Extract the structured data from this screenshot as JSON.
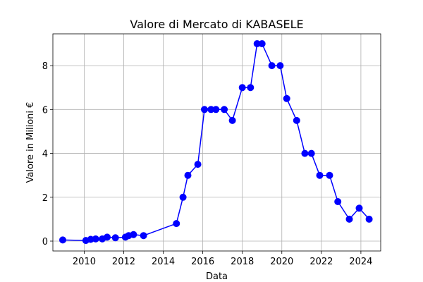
{
  "chart_data": {
    "type": "line",
    "title": "Valore di Mercato di KABASELE",
    "xlabel": "Data",
    "ylabel": "Valore in Milioni €",
    "x_axis_type": "date",
    "xlim": [
      "2008-06-01",
      "2025-01-01"
    ],
    "ylim": [
      -0.45,
      9.45
    ],
    "x_ticks": [
      "2010",
      "2012",
      "2014",
      "2016",
      "2018",
      "2020",
      "2022",
      "2024"
    ],
    "y_ticks": [
      0,
      2,
      4,
      6,
      8
    ],
    "grid": true,
    "legend": "none",
    "series": [
      {
        "color": "#0000ff",
        "marker": "circle",
        "points": [
          {
            "x": "2008-12-01",
            "y": 0.05
          },
          {
            "x": "2010-02-01",
            "y": 0.03
          },
          {
            "x": "2010-05-01",
            "y": 0.08
          },
          {
            "x": "2010-08-01",
            "y": 0.1
          },
          {
            "x": "2010-12-01",
            "y": 0.1
          },
          {
            "x": "2011-03-01",
            "y": 0.18
          },
          {
            "x": "2011-08-01",
            "y": 0.15
          },
          {
            "x": "2012-02-01",
            "y": 0.18
          },
          {
            "x": "2012-04-01",
            "y": 0.25
          },
          {
            "x": "2012-07-01",
            "y": 0.3
          },
          {
            "x": "2013-01-01",
            "y": 0.25
          },
          {
            "x": "2014-09-01",
            "y": 0.8
          },
          {
            "x": "2015-01-01",
            "y": 2.0
          },
          {
            "x": "2015-04-01",
            "y": 3.0
          },
          {
            "x": "2015-10-01",
            "y": 3.5
          },
          {
            "x": "2016-02-01",
            "y": 6.0
          },
          {
            "x": "2016-06-01",
            "y": 6.0
          },
          {
            "x": "2016-09-01",
            "y": 6.0
          },
          {
            "x": "2017-02-01",
            "y": 6.0
          },
          {
            "x": "2017-07-01",
            "y": 5.5
          },
          {
            "x": "2018-01-01",
            "y": 7.0
          },
          {
            "x": "2018-06-01",
            "y": 7.0
          },
          {
            "x": "2018-10-01",
            "y": 9.0
          },
          {
            "x": "2019-01-01",
            "y": 9.0
          },
          {
            "x": "2019-07-01",
            "y": 8.0
          },
          {
            "x": "2019-12-01",
            "y": 8.0
          },
          {
            "x": "2020-04-01",
            "y": 6.5
          },
          {
            "x": "2020-10-01",
            "y": 5.5
          },
          {
            "x": "2021-03-01",
            "y": 4.0
          },
          {
            "x": "2021-07-01",
            "y": 4.0
          },
          {
            "x": "2021-12-01",
            "y": 3.0
          },
          {
            "x": "2022-06-01",
            "y": 3.0
          },
          {
            "x": "2022-11-01",
            "y": 1.8
          },
          {
            "x": "2023-06-01",
            "y": 1.0
          },
          {
            "x": "2023-12-01",
            "y": 1.5
          },
          {
            "x": "2024-06-01",
            "y": 1.0
          }
        ]
      }
    ]
  }
}
